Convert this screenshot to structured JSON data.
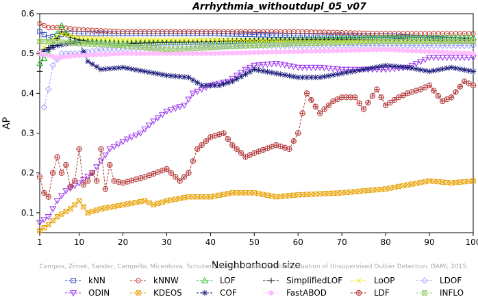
{
  "chart_data": {
    "type": "line",
    "title": "Arrhythmia_withoutdupl_05_v07",
    "xlabel": "Neighborhood size",
    "ylabel": "AP",
    "xlim": [
      1,
      100
    ],
    "ylim": [
      0.05,
      0.6
    ],
    "x_ticks": [
      1,
      10,
      20,
      30,
      40,
      50,
      60,
      70,
      80,
      90,
      100
    ],
    "y_ticks": [
      0.1,
      0.2,
      0.3,
      0.4,
      0.5,
      0.6
    ],
    "x_tick_labels": [
      "1",
      "10",
      "20",
      "30",
      "40",
      "50",
      "60",
      "70",
      "80",
      "90",
      "100"
    ],
    "y_tick_labels": [
      "0.1",
      "0.2",
      "0.3",
      "0.4",
      "0.5",
      "0.6"
    ],
    "grid": false,
    "legend_placement": "bottom",
    "watermark": "Campos, Zimek, Sander, Campello, Micenkova, Schubert, Assent, Houle: On the Evaluation of Unsupervised Outlier Detection. DAMI, 2015.",
    "series": [
      {
        "name": "kNN",
        "color": "#1f3fbf",
        "marker": "square",
        "anchors": [
          [
            1,
            0.555
          ],
          [
            3,
            0.54
          ],
          [
            5,
            0.545
          ],
          [
            7,
            0.55
          ],
          [
            10,
            0.55
          ],
          [
            20,
            0.55
          ],
          [
            40,
            0.55
          ],
          [
            60,
            0.545
          ],
          [
            80,
            0.545
          ],
          [
            95,
            0.535
          ],
          [
            100,
            0.53
          ]
        ]
      },
      {
        "name": "kNNW",
        "color": "#c0392b",
        "marker": "circle",
        "anchors": [
          [
            1,
            0.575
          ],
          [
            3,
            0.565
          ],
          [
            6,
            0.565
          ],
          [
            10,
            0.56
          ],
          [
            20,
            0.555
          ],
          [
            40,
            0.555
          ],
          [
            60,
            0.555
          ],
          [
            80,
            0.55
          ],
          [
            100,
            0.55
          ]
        ]
      },
      {
        "name": "LOF",
        "color": "#22bb22",
        "marker": "triangle",
        "anchors": [
          [
            1,
            0.475
          ],
          [
            3,
            0.5
          ],
          [
            5,
            0.55
          ],
          [
            6,
            0.57
          ],
          [
            8,
            0.53
          ],
          [
            12,
            0.53
          ],
          [
            20,
            0.525
          ],
          [
            40,
            0.53
          ],
          [
            60,
            0.535
          ],
          [
            80,
            0.54
          ],
          [
            100,
            0.54
          ]
        ]
      },
      {
        "name": "SimplifiedLOF",
        "color": "#111111",
        "marker": "plus",
        "anchors": [
          [
            1,
            0.455
          ],
          [
            2,
            0.51
          ],
          [
            4,
            0.52
          ],
          [
            6,
            0.555
          ],
          [
            8,
            0.54
          ],
          [
            12,
            0.53
          ],
          [
            20,
            0.525
          ],
          [
            40,
            0.53
          ],
          [
            60,
            0.535
          ],
          [
            80,
            0.535
          ],
          [
            100,
            0.535
          ]
        ]
      },
      {
        "name": "LoOP",
        "color": "#e8e800",
        "marker": "x",
        "anchors": [
          [
            1,
            0.5
          ],
          [
            3,
            0.53
          ],
          [
            6,
            0.55
          ],
          [
            10,
            0.54
          ],
          [
            20,
            0.535
          ],
          [
            40,
            0.535
          ],
          [
            60,
            0.53
          ],
          [
            80,
            0.53
          ],
          [
            100,
            0.53
          ]
        ]
      },
      {
        "name": "LDOF",
        "color": "#a0a0ff",
        "marker": "diamond",
        "anchors": [
          [
            2,
            0.365
          ],
          [
            3,
            0.41
          ],
          [
            4,
            0.47
          ],
          [
            6,
            0.5
          ],
          [
            10,
            0.5
          ],
          [
            15,
            0.51
          ],
          [
            25,
            0.515
          ],
          [
            45,
            0.52
          ],
          [
            70,
            0.52
          ],
          [
            100,
            0.52
          ]
        ]
      },
      {
        "name": "ODIN",
        "color": "#9933ee",
        "marker": "triangle-down",
        "anchors": [
          [
            1,
            0.075
          ],
          [
            3,
            0.09
          ],
          [
            5,
            0.13
          ],
          [
            7,
            0.155
          ],
          [
            10,
            0.175
          ],
          [
            13,
            0.2
          ],
          [
            17,
            0.26
          ],
          [
            21,
            0.285
          ],
          [
            24,
            0.3
          ],
          [
            27,
            0.33
          ],
          [
            30,
            0.355
          ],
          [
            34,
            0.37
          ],
          [
            36,
            0.4
          ],
          [
            40,
            0.42
          ],
          [
            44,
            0.43
          ],
          [
            48,
            0.46
          ],
          [
            50,
            0.47
          ],
          [
            55,
            0.475
          ],
          [
            60,
            0.465
          ],
          [
            65,
            0.465
          ],
          [
            70,
            0.46
          ],
          [
            80,
            0.46
          ],
          [
            85,
            0.465
          ],
          [
            90,
            0.49
          ],
          [
            95,
            0.49
          ],
          [
            100,
            0.49
          ]
        ]
      },
      {
        "name": "KDEOS",
        "color": "#e8a000",
        "marker": "square-x",
        "anchors": [
          [
            1,
            0.055
          ],
          [
            3,
            0.07
          ],
          [
            5,
            0.09
          ],
          [
            8,
            0.11
          ],
          [
            10,
            0.13
          ],
          [
            12,
            0.1
          ],
          [
            15,
            0.11
          ],
          [
            20,
            0.12
          ],
          [
            25,
            0.13
          ],
          [
            27,
            0.12
          ],
          [
            30,
            0.13
          ],
          [
            35,
            0.14
          ],
          [
            40,
            0.14
          ],
          [
            45,
            0.15
          ],
          [
            50,
            0.15
          ],
          [
            55,
            0.14
          ],
          [
            60,
            0.145
          ],
          [
            70,
            0.15
          ],
          [
            80,
            0.16
          ],
          [
            85,
            0.17
          ],
          [
            90,
            0.18
          ],
          [
            95,
            0.175
          ],
          [
            100,
            0.18
          ]
        ]
      },
      {
        "name": "COF",
        "color": "#1a1a7a",
        "marker": "star",
        "anchors": [
          [
            1,
            0.5
          ],
          [
            5,
            0.52
          ],
          [
            10,
            0.53
          ],
          [
            12,
            0.48
          ],
          [
            15,
            0.46
          ],
          [
            20,
            0.465
          ],
          [
            25,
            0.455
          ],
          [
            30,
            0.445
          ],
          [
            35,
            0.44
          ],
          [
            38,
            0.42
          ],
          [
            42,
            0.42
          ],
          [
            45,
            0.43
          ],
          [
            50,
            0.46
          ],
          [
            55,
            0.45
          ],
          [
            60,
            0.44
          ],
          [
            65,
            0.44
          ],
          [
            70,
            0.45
          ],
          [
            75,
            0.46
          ],
          [
            80,
            0.47
          ],
          [
            85,
            0.465
          ],
          [
            90,
            0.455
          ],
          [
            95,
            0.465
          ],
          [
            100,
            0.455
          ]
        ]
      },
      {
        "name": "FastABOD",
        "color": "#ffbfff",
        "marker": "circle-filled",
        "anchors": [
          [
            1,
            0.5
          ],
          [
            5,
            0.49
          ],
          [
            10,
            0.495
          ],
          [
            20,
            0.5
          ],
          [
            40,
            0.5
          ],
          [
            60,
            0.505
          ],
          [
            80,
            0.51
          ],
          [
            100,
            0.5
          ]
        ]
      },
      {
        "name": "LDF",
        "color": "#b03030",
        "marker": "circle-plus",
        "anchors": [
          [
            1,
            0.19
          ],
          [
            2,
            0.15
          ],
          [
            3,
            0.14
          ],
          [
            4,
            0.2
          ],
          [
            5,
            0.24
          ],
          [
            6,
            0.2
          ],
          [
            7,
            0.22
          ],
          [
            8,
            0.165
          ],
          [
            9,
            0.18
          ],
          [
            10,
            0.26
          ],
          [
            11,
            0.17
          ],
          [
            12,
            0.18
          ],
          [
            13,
            0.2
          ],
          [
            14,
            0.18
          ],
          [
            15,
            0.26
          ],
          [
            16,
            0.16
          ],
          [
            17,
            0.22
          ],
          [
            18,
            0.18
          ],
          [
            20,
            0.175
          ],
          [
            25,
            0.19
          ],
          [
            30,
            0.21
          ],
          [
            33,
            0.18
          ],
          [
            35,
            0.2
          ],
          [
            37,
            0.26
          ],
          [
            40,
            0.29
          ],
          [
            43,
            0.3
          ],
          [
            45,
            0.27
          ],
          [
            48,
            0.24
          ],
          [
            50,
            0.25
          ],
          [
            55,
            0.27
          ],
          [
            58,
            0.26
          ],
          [
            60,
            0.3
          ],
          [
            62,
            0.4
          ],
          [
            65,
            0.35
          ],
          [
            68,
            0.38
          ],
          [
            70,
            0.39
          ],
          [
            73,
            0.39
          ],
          [
            75,
            0.36
          ],
          [
            78,
            0.41
          ],
          [
            80,
            0.37
          ],
          [
            83,
            0.39
          ],
          [
            85,
            0.4
          ],
          [
            88,
            0.41
          ],
          [
            90,
            0.42
          ],
          [
            93,
            0.38
          ],
          [
            95,
            0.39
          ],
          [
            98,
            0.43
          ],
          [
            100,
            0.42
          ]
        ]
      },
      {
        "name": "INFLO",
        "color": "#99cc66",
        "marker": "hourglass",
        "anchors": [
          [
            1,
            0.53
          ],
          [
            5,
            0.53
          ],
          [
            10,
            0.525
          ],
          [
            20,
            0.52
          ],
          [
            30,
            0.51
          ],
          [
            40,
            0.515
          ],
          [
            60,
            0.525
          ],
          [
            80,
            0.53
          ],
          [
            100,
            0.53
          ]
        ]
      }
    ]
  }
}
